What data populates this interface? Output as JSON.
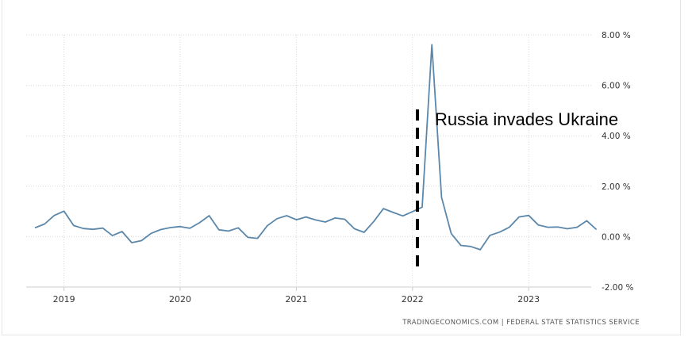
{
  "chart_data": {
    "type": "line",
    "series": [
      {
        "color": "#5b87aa",
        "x": [
          "2018-10",
          "2018-11",
          "2018-12",
          "2019-01",
          "2019-02",
          "2019-03",
          "2019-04",
          "2019-05",
          "2019-06",
          "2019-07",
          "2019-08",
          "2019-09",
          "2019-10",
          "2019-11",
          "2019-12",
          "2020-01",
          "2020-02",
          "2020-03",
          "2020-04",
          "2020-05",
          "2020-06",
          "2020-07",
          "2020-08",
          "2020-09",
          "2020-10",
          "2020-11",
          "2020-12",
          "2021-01",
          "2021-02",
          "2021-03",
          "2021-04",
          "2021-05",
          "2021-06",
          "2021-07",
          "2021-08",
          "2021-09",
          "2021-10",
          "2021-11",
          "2021-12",
          "2022-01",
          "2022-02",
          "2022-03",
          "2022-04",
          "2022-05",
          "2022-06",
          "2022-07",
          "2022-08",
          "2022-09",
          "2022-10",
          "2022-11",
          "2022-12",
          "2023-01",
          "2023-02",
          "2023-03",
          "2023-04",
          "2023-05",
          "2023-06",
          "2023-07",
          "2023-08"
        ],
        "values": [
          0.35,
          0.5,
          0.84,
          1.01,
          0.44,
          0.32,
          0.29,
          0.34,
          0.04,
          0.2,
          -0.24,
          -0.16,
          0.13,
          0.28,
          0.36,
          0.4,
          0.33,
          0.55,
          0.83,
          0.27,
          0.22,
          0.35,
          -0.03,
          -0.07,
          0.43,
          0.71,
          0.83,
          0.67,
          0.78,
          0.66,
          0.58,
          0.74,
          0.69,
          0.31,
          0.17,
          0.6,
          1.11,
          0.96,
          0.82,
          0.99,
          1.17,
          7.61,
          1.56,
          0.12,
          -0.35,
          -0.39,
          -0.52,
          0.05,
          0.18,
          0.37,
          0.78,
          0.84,
          0.46,
          0.37,
          0.38,
          0.31,
          0.37,
          0.63,
          0.28
        ]
      }
    ],
    "x_ticks": [
      "2019",
      "2020",
      "2021",
      "2022",
      "2023"
    ],
    "y_ticks": [
      "8.00 %",
      "6.00 %",
      "4.00 %",
      "2.00 %",
      "0.00 %",
      "-2.00 %"
    ],
    "y_tick_values": [
      8,
      6,
      4,
      2,
      0,
      -2
    ],
    "ylim": [
      -2,
      8
    ],
    "grid": true,
    "annotations": [
      {
        "text": "Russia invades Ukraine",
        "x": "2022-02",
        "style": "vertical dashed line"
      }
    ],
    "source": "TRADINGECONOMICS.COM  |  FEDERAL STATE STATISTICS SERVICE"
  }
}
